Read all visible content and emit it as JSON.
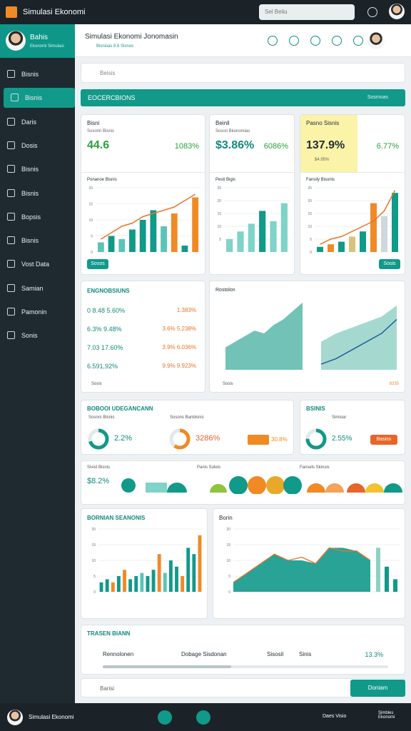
{
  "topbar": {
    "title": "Simulasi Ekonomi",
    "search": "Sel Beliu"
  },
  "sidebar": {
    "name": "Bahis",
    "role": "Ekonomi Simulasi",
    "items": [
      "Bisnis",
      "Bisnis",
      "Daris",
      "Dosis",
      "Bisnis",
      "Bisnis",
      "Bopsis",
      "Bisnis",
      "Vost Data",
      "Samian",
      "Pamonin",
      "Sonis"
    ],
    "active": 1
  },
  "header": {
    "title": "Simulasi Ekonomi Jonomasin",
    "subtitle": "Bisnisas 8.6 Sisnos"
  },
  "search": "Beisis",
  "banner": {
    "title": "EOCERCBIONS",
    "action": "Sosmoas"
  },
  "cards": [
    {
      "title": "Bisni",
      "subtitle": "Sosorin Bisnis",
      "value": "44.6",
      "change": "1083%",
      "value_color": "#2e9e3e",
      "chart": {
        "title": "Ponanoe Bisnis",
        "ylim": [
          0,
          20
        ],
        "yticks": [
          0,
          5,
          10,
          15,
          20
        ],
        "bars": [
          3,
          5,
          4,
          7,
          10,
          13,
          8,
          12,
          2,
          17
        ],
        "colors": [
          "#5bc4b8",
          "#11998a",
          "#5bc4b8",
          "#11998a",
          "#11998a",
          "#11998a",
          "#5bc4b8",
          "#f08a24",
          "#11998a",
          "#f08a24"
        ],
        "line": [
          4,
          6,
          8,
          9,
          11,
          12,
          13,
          14,
          16,
          18
        ],
        "line_color": "#e8752a"
      },
      "button": "Sosos"
    },
    {
      "title": "Beinil",
      "subtitle": "Sosori Bkonomias",
      "value": "$3.86%",
      "change": "6086%",
      "value_color": "#11897c",
      "chart": {
        "title": "Pesti Bigis",
        "ylim": [
          0,
          25
        ],
        "yticks": [
          5,
          10,
          15,
          20,
          25
        ],
        "bars": [
          5,
          8,
          11,
          16,
          12,
          19
        ],
        "colors": [
          "#7fd3c8",
          "#7fd3c8",
          "#7fd3c8",
          "#11998a",
          "#7fd3c8",
          "#7fd3c8"
        ],
        "line": [],
        "line_color": "#e8752a"
      },
      "button": ""
    },
    {
      "title": "Pasno Sisnis",
      "subtitle": "$4.95%",
      "value": "137.9%",
      "change": "6.77%",
      "value_color": "#1f2d33",
      "chart": {
        "title": "Fansily Bisonis",
        "ylim": [
          0,
          25
        ],
        "yticks": [
          0,
          5,
          10,
          15,
          20,
          25
        ],
        "bars": [
          2,
          3,
          4,
          6,
          8,
          19,
          14,
          23
        ],
        "colors": [
          "#11998a",
          "#f08a24",
          "#11998a",
          "#d9c37a",
          "#11998a",
          "#f08a24",
          "#cfd8dc",
          "#11998a"
        ],
        "line": [
          3,
          5,
          6,
          8,
          10,
          12,
          16,
          24
        ],
        "line_color": "#e8752a"
      },
      "button": "Sosis"
    }
  ],
  "list": {
    "title": "ENGNOBSIUNS",
    "rows": [
      [
        "0 8.48 5.60%",
        "1.383%"
      ],
      [
        "6.3% 9.48%",
        "3.6% 5.238%"
      ],
      [
        "7.03 17.60%",
        "3.9% 6.036%"
      ],
      [
        "6.591,92%",
        "9.9% 9.923%"
      ]
    ],
    "footer": "Sosis"
  },
  "area_panel": {
    "title": "Rostolon",
    "area": [
      8,
      10,
      12,
      14,
      13,
      16,
      18,
      21,
      24
    ],
    "area2": [
      10,
      13,
      15,
      17,
      19,
      23
    ],
    "line": [
      2,
      4,
      7,
      10,
      13,
      18
    ],
    "legend": [
      "Sosis",
      "8335"
    ]
  },
  "donuts": {
    "title": "BOBOOI UDEGANCANN",
    "items": [
      {
        "label": "Sosors Bisnis",
        "value": "2.2%",
        "pct": 70,
        "color": "#11998a"
      },
      {
        "label": "Sosons Banbisnis",
        "value": "3286%",
        "pct": 60,
        "color": "#f08a24"
      }
    ],
    "tag": "30.8%"
  },
  "donut2": {
    "title": "BSINIS",
    "label": "Simioar",
    "value": "2.55%",
    "pct": 75,
    "color": "#11998a",
    "button": "Basiss"
  },
  "strip": {
    "labels": [
      "Sivist Bisnis",
      "Panis Suleis",
      "Fansels Skinsis"
    ],
    "value": "$8.2%"
  },
  "bars_panel": {
    "title": "BORNIAN SEANONIS",
    "ylim": [
      0,
      20
    ],
    "yticks": [
      0,
      5,
      10,
      15,
      20
    ],
    "bars": [
      3,
      4,
      3,
      5,
      7,
      4,
      5,
      6,
      5,
      7,
      12,
      6,
      10,
      8,
      5,
      14,
      12,
      18
    ],
    "colors": [
      "#11998a",
      "#11998a",
      "#f08a24",
      "#11998a",
      "#f08a24",
      "#11998a",
      "#11998a",
      "#5bc4b8",
      "#11998a",
      "#11998a",
      "#f08a24",
      "#5bc4b8",
      "#11998a",
      "#11998a",
      "#f08a24",
      "#11998a",
      "#11998a",
      "#f08a24"
    ]
  },
  "area_panel2": {
    "title": "Borin",
    "ylim": [
      0,
      20
    ],
    "yticks": [
      0,
      5,
      10,
      15,
      20
    ],
    "area": [
      3,
      6,
      9,
      12,
      10,
      10,
      9,
      14,
      14,
      13,
      10
    ],
    "line": [
      3,
      6,
      9,
      12,
      10,
      11,
      9,
      14,
      13,
      13,
      10
    ],
    "bars": [
      14,
      8,
      4
    ]
  },
  "tasks": {
    "title": "TRASEN BIANN",
    "items": [
      "Rennolonen",
      "Dobage Sisdonan",
      "Sisosil",
      "Sinis"
    ],
    "value": "13.3%",
    "progress": 45
  },
  "footer": {
    "input": "Barisi",
    "button": "Doniam"
  },
  "bottombar": {
    "name": "Simulasi Ekonomi",
    "items": [
      "Daes Visio",
      "Simbles Ekonomi"
    ]
  }
}
